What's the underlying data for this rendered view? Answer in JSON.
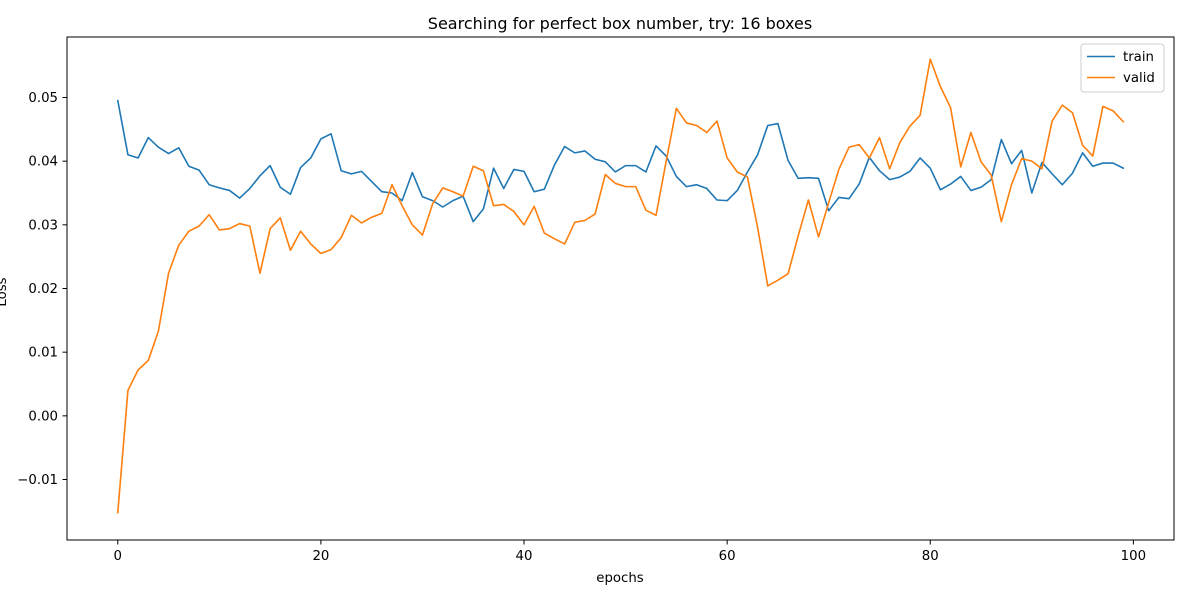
{
  "chart_data": {
    "type": "line",
    "title": "Searching for perfect box number, try: 16 boxes",
    "xlabel": "epochs",
    "ylabel": "Loss",
    "xlim": [
      -5,
      104
    ],
    "ylim": [
      -0.0195,
      0.0595
    ],
    "xticks": [
      0,
      20,
      40,
      60,
      80,
      100
    ],
    "yticks": [
      -0.01,
      0.0,
      0.01,
      0.02,
      0.03,
      0.04,
      0.05
    ],
    "xtick_labels": [
      "0",
      "20",
      "40",
      "60",
      "80",
      "100"
    ],
    "ytick_labels": [
      "−0.01",
      "0.00",
      "0.01",
      "0.02",
      "0.03",
      "0.04",
      "0.05"
    ],
    "grid": false,
    "legend_position": "top-right",
    "series": [
      {
        "name": "train",
        "color": "#1f77b4",
        "values": [
          0.0495,
          0.041,
          0.0405,
          0.0437,
          0.0422,
          0.0412,
          0.0421,
          0.0392,
          0.0386,
          0.0363,
          0.0358,
          0.0354,
          0.0342,
          0.0357,
          0.0377,
          0.0393,
          0.0359,
          0.0348,
          0.039,
          0.0405,
          0.0435,
          0.0443,
          0.0385,
          0.038,
          0.0384,
          0.0368,
          0.0352,
          0.035,
          0.0338,
          0.0382,
          0.0344,
          0.0338,
          0.0328,
          0.0338,
          0.0345,
          0.0305,
          0.0325,
          0.0389,
          0.0357,
          0.0387,
          0.0384,
          0.0352,
          0.0356,
          0.0394,
          0.0423,
          0.0413,
          0.0416,
          0.0403,
          0.0399,
          0.0383,
          0.0393,
          0.0393,
          0.0383,
          0.0424,
          0.0408,
          0.0376,
          0.036,
          0.0363,
          0.0357,
          0.0339,
          0.0338,
          0.0354,
          0.0383,
          0.041,
          0.0456,
          0.0459,
          0.0401,
          0.0373,
          0.0374,
          0.0373,
          0.0322,
          0.0343,
          0.0341,
          0.0364,
          0.0406,
          0.0385,
          0.0371,
          0.0375,
          0.0384,
          0.0405,
          0.0389,
          0.0355,
          0.0364,
          0.0376,
          0.0354,
          0.0359,
          0.0371,
          0.0434,
          0.0396,
          0.0417,
          0.035,
          0.0398,
          0.038,
          0.0363,
          0.0381,
          0.0413,
          0.0392,
          0.0397,
          0.0397,
          0.0389
        ]
      },
      {
        "name": "valid",
        "color": "#ff7f0e",
        "values": [
          -0.0152,
          0.004,
          0.0072,
          0.0087,
          0.0133,
          0.0224,
          0.0268,
          0.029,
          0.0298,
          0.0316,
          0.0292,
          0.0294,
          0.0302,
          0.0298,
          0.0224,
          0.0294,
          0.0311,
          0.026,
          0.029,
          0.027,
          0.0255,
          0.0261,
          0.028,
          0.0315,
          0.0303,
          0.0312,
          0.0318,
          0.0363,
          0.033,
          0.03,
          0.0284,
          0.0333,
          0.0358,
          0.0352,
          0.0345,
          0.0392,
          0.0385,
          0.033,
          0.0332,
          0.0321,
          0.03,
          0.0329,
          0.0287,
          0.0278,
          0.027,
          0.0304,
          0.0307,
          0.0317,
          0.0379,
          0.0365,
          0.036,
          0.036,
          0.0323,
          0.0315,
          0.04,
          0.0483,
          0.046,
          0.0456,
          0.0445,
          0.0463,
          0.0405,
          0.0383,
          0.0375,
          0.0296,
          0.0204,
          0.0213,
          0.0223,
          0.0283,
          0.0339,
          0.0281,
          0.0335,
          0.0387,
          0.0422,
          0.0426,
          0.0405,
          0.0437,
          0.0388,
          0.0429,
          0.0455,
          0.0472,
          0.056,
          0.0517,
          0.0484,
          0.0391,
          0.0445,
          0.0399,
          0.0378,
          0.0305,
          0.0363,
          0.0404,
          0.04,
          0.0388,
          0.0463,
          0.0488,
          0.0476,
          0.0425,
          0.0408,
          0.0486,
          0.0479,
          0.0462
        ]
      }
    ]
  }
}
